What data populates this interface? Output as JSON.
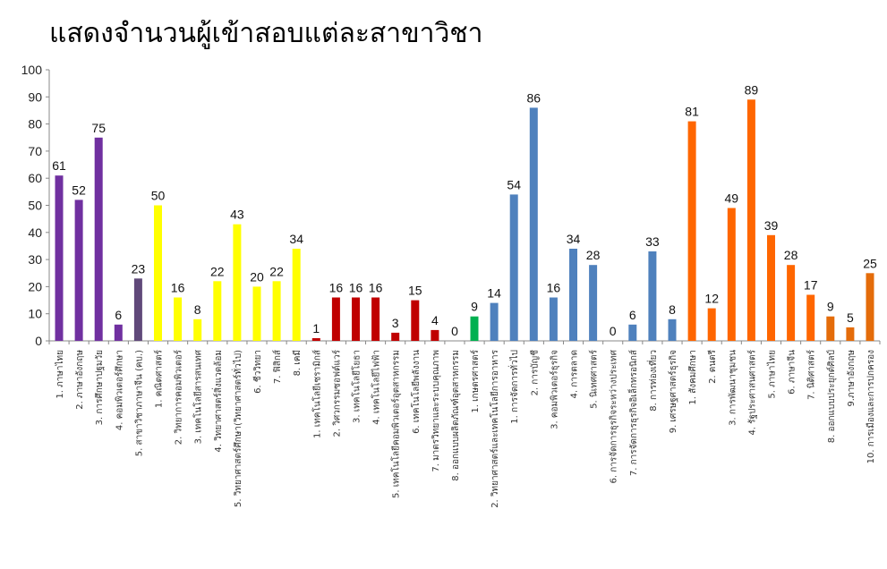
{
  "chart_data": {
    "type": "bar",
    "title": "แสดงจำนวนผู้เข้าสอบแต่ละสาขาวิชา",
    "ylim": [
      0,
      100
    ],
    "yticks": [
      0,
      10,
      20,
      30,
      40,
      50,
      60,
      70,
      80,
      90,
      100
    ],
    "grid": false,
    "legend": "none",
    "categories": [
      "1. ภาษาไทย",
      "2. ภาษาอังกฤษ",
      "3. การศึกษาปฐมวัย",
      "4. คอมพิวเตอร์ศึกษา",
      "5. สาขาวิชาภาษาจีน (คบ.)",
      "1. คณิตศาสตร์",
      "2. วิทยาการคอมพิวเตอร์",
      "3. เทคโนโลยีสารสนเทศ",
      "4. วิทยาศาสตร์สิ่งแวดล้อม",
      "5. วิทยาศาสตร์ศึกษา(วิทยาศาสตร์ทั่วไป)",
      "6. ชีววิทยา",
      "7. ฟิสิกส์",
      "8. เคมี",
      "1. เทคโนโลยีเซรามิกส์",
      "2. วิศวกรรมซอฟต์แวร์",
      "3. เทคโนโลยีโยธา",
      "4. เทคโนโลยีไฟฟ้า",
      "5. เทคโนโลยีคอมพิวเตอร์อุตสาหกรรม",
      "6. เทคโนโลยีพลังงาน",
      "7. มาตรวิทยาและระบบคุณภาพ",
      "8. ออกแบบผลิตภัณฑ์อุตสาหกรรม",
      "1. เกษตรศาสตร์",
      "2. วิทยาศาสตร์และเทคโนโลยีการอาหาร",
      "1. การจัดการทั่วไป",
      "2. การบัญชี",
      "3. คอมพิวเตอร์ธุรกิจ",
      "4. การตลาด",
      "5. นิเทศศาสตร์",
      "6. การจัดการธุรกิจระหว่างประเทศ",
      "7. การจัดการธุรกิจอิเล็กทรอนิกส์",
      "8. การท่องเที่ยว",
      "9. เศรษฐศาสตร์ธุรกิจ",
      "1. สังคมศึกษา",
      "2. ดนตรี",
      "3. การพัฒนาชุมชน",
      "4. รัฐประศาสนศาสตร์",
      "5. ภาษาไทย",
      "6. ภาษาจีน",
      "7. นิติศาสตร์",
      "8. ออกแบบประยุกต์ศิลป์",
      "9.ภาษาอังกฤษ",
      "10. การเมืองและการปกครอง"
    ],
    "values": [
      61,
      52,
      75,
      6,
      23,
      50,
      16,
      8,
      22,
      43,
      20,
      22,
      34,
      1,
      16,
      16,
      16,
      3,
      15,
      4,
      0,
      9,
      14,
      54,
      86,
      16,
      34,
      28,
      0,
      6,
      33,
      8,
      81,
      12,
      49,
      89,
      39,
      28,
      17,
      9,
      5,
      25
    ],
    "colors": [
      "#7030A0",
      "#7030A0",
      "#7030A0",
      "#7030A0",
      "#60497A",
      "#FFFF00",
      "#FFFF00",
      "#FFFF00",
      "#FFFF00",
      "#FFFF00",
      "#FFFF00",
      "#FFFF00",
      "#FFFF00",
      "#C00000",
      "#C00000",
      "#C00000",
      "#C00000",
      "#C00000",
      "#C00000",
      "#C00000",
      "#C00000",
      "#00B050",
      "#4F81BD",
      "#4F81BD",
      "#4F81BD",
      "#4F81BD",
      "#4F81BD",
      "#4F81BD",
      "#4F81BD",
      "#4F81BD",
      "#4F81BD",
      "#4F81BD",
      "#FF6600",
      "#FF6600",
      "#FF6600",
      "#FF6600",
      "#FF6600",
      "#FF6600",
      "#FF6600",
      "#E46C0A",
      "#E46C0A",
      "#E46C0A"
    ]
  }
}
